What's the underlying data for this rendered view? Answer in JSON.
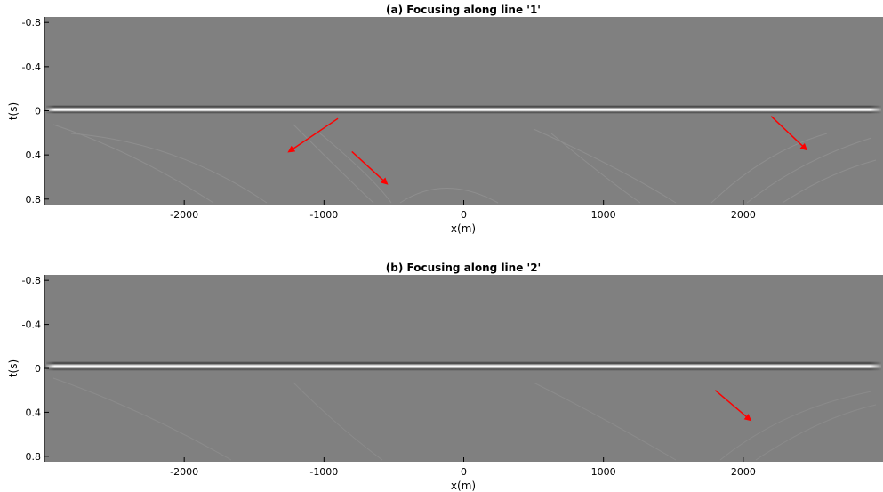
{
  "chart_data": [
    {
      "type": "heatmap",
      "title": "(a) Focusing along line '1'",
      "xlabel": "x(m)",
      "ylabel": "t(s)",
      "xlim": [
        -3000,
        3000
      ],
      "ylim": [
        -0.85,
        0.85
      ],
      "y_reversed": true,
      "xticks": [
        -2000,
        -1000,
        0,
        1000,
        2000
      ],
      "xtick_labels": [
        "-2000",
        "-1000",
        "0",
        "1000",
        "2000"
      ],
      "yticks": [
        -0.8,
        -0.4,
        0,
        0.4,
        0.8
      ],
      "ytick_labels": [
        "-0.8",
        "-0.4",
        "0",
        "0.4",
        "0.8"
      ],
      "colormap": "gray",
      "background": "#808080",
      "focused_event_t": 0,
      "annotations": [
        {
          "type": "arrow",
          "color": "#ff0000",
          "from": [
            -900,
            0.07
          ],
          "to": [
            -1250,
            0.37
          ]
        },
        {
          "type": "arrow",
          "color": "#ff0000",
          "from": [
            -800,
            0.37
          ],
          "to": [
            -550,
            0.66
          ]
        },
        {
          "type": "arrow",
          "color": "#ff0000",
          "from": [
            2200,
            0.05
          ],
          "to": [
            2450,
            0.35
          ]
        }
      ]
    },
    {
      "type": "heatmap",
      "title": "(b) Focusing along line '2'",
      "xlabel": "x(m)",
      "ylabel": "t(s)",
      "xlim": [
        -3000,
        3000
      ],
      "ylim": [
        -0.85,
        0.85
      ],
      "y_reversed": true,
      "xticks": [
        -2000,
        -1000,
        0,
        1000,
        2000
      ],
      "xtick_labels": [
        "-2000",
        "-1000",
        "0",
        "1000",
        "2000"
      ],
      "yticks": [
        -0.8,
        -0.4,
        0,
        0.4,
        0.8
      ],
      "ytick_labels": [
        "-0.8",
        "-0.4",
        "0",
        "0.4",
        "0.8"
      ],
      "colormap": "gray",
      "background": "#808080",
      "focused_event_t": 0,
      "annotations": [
        {
          "type": "arrow",
          "color": "#ff0000",
          "from": [
            1800,
            0.2
          ],
          "to": [
            2050,
            0.47
          ]
        }
      ]
    }
  ]
}
